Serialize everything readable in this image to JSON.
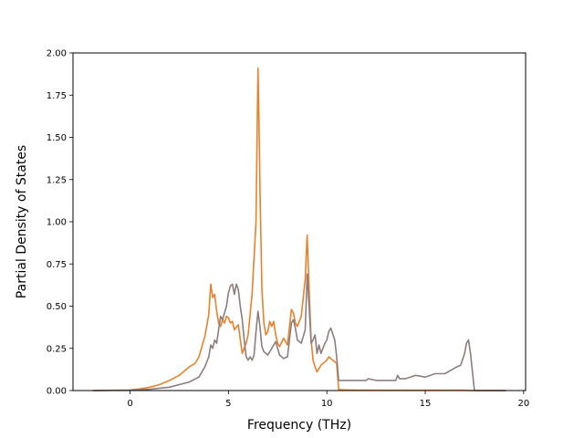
{
  "chart_data": {
    "type": "line",
    "title": "",
    "xlabel": "Frequency (THz)",
    "ylabel": "Partial Density of States",
    "xlim": [
      -2.9,
      20.1
    ],
    "ylim": [
      0.0,
      2.0
    ],
    "xticks": [
      0,
      5,
      10,
      15,
      20
    ],
    "xtick_labels": [
      "0",
      "5",
      "10",
      "15",
      "20"
    ],
    "yticks": [
      0.0,
      0.25,
      0.5,
      0.75,
      1.0,
      1.25,
      1.5,
      1.75,
      2.0
    ],
    "ytick_labels": [
      "0.00",
      "0.25",
      "0.50",
      "0.75",
      "1.00",
      "1.25",
      "1.50",
      "1.75",
      "2.00"
    ],
    "grid": false,
    "legend": "none",
    "series": [
      {
        "color": "#e8812b",
        "x": [
          -1.9,
          0.0,
          0.5,
          1.0,
          1.5,
          2.0,
          2.5,
          3.0,
          3.3,
          3.5,
          3.8,
          4.0,
          4.1,
          4.2,
          4.3,
          4.4,
          4.5,
          4.6,
          4.7,
          4.8,
          4.9,
          5.0,
          5.1,
          5.2,
          5.3,
          5.5,
          5.7,
          5.9,
          6.0,
          6.2,
          6.4,
          6.5,
          6.55,
          6.6,
          6.7,
          6.8,
          6.9,
          7.0,
          7.1,
          7.2,
          7.3,
          7.4,
          7.5,
          7.6,
          7.8,
          8.0,
          8.2,
          8.3,
          8.4,
          8.5,
          8.7,
          8.9,
          9.0,
          9.1,
          9.2,
          9.3,
          9.4,
          9.5,
          9.7,
          9.9,
          10.0,
          10.1,
          10.3,
          10.5,
          10.6,
          11.0,
          12.0,
          13.0,
          14.0,
          15.0,
          16.0,
          17.0,
          17.3,
          19.1
        ],
        "y": [
          0.0,
          0.003,
          0.01,
          0.02,
          0.035,
          0.06,
          0.09,
          0.14,
          0.16,
          0.2,
          0.32,
          0.45,
          0.63,
          0.55,
          0.57,
          0.47,
          0.4,
          0.38,
          0.42,
          0.4,
          0.44,
          0.43,
          0.4,
          0.41,
          0.36,
          0.39,
          0.22,
          0.28,
          0.33,
          0.57,
          1.0,
          1.91,
          1.6,
          1.2,
          0.6,
          0.4,
          0.33,
          0.35,
          0.41,
          0.38,
          0.41,
          0.33,
          0.28,
          0.26,
          0.31,
          0.27,
          0.48,
          0.46,
          0.4,
          0.38,
          0.44,
          0.66,
          0.92,
          0.6,
          0.3,
          0.18,
          0.14,
          0.11,
          0.15,
          0.17,
          0.18,
          0.2,
          0.18,
          0.16,
          0.005,
          0.003,
          0.002,
          0.002,
          0.002,
          0.002,
          0.002,
          0.002,
          0.0,
          0.0
        ]
      },
      {
        "color": "#8c7e7e",
        "x": [
          -1.9,
          0.0,
          1.0,
          2.0,
          3.0,
          3.5,
          3.8,
          4.0,
          4.1,
          4.2,
          4.3,
          4.4,
          4.5,
          4.6,
          4.7,
          4.8,
          4.9,
          5.0,
          5.1,
          5.2,
          5.3,
          5.4,
          5.5,
          5.6,
          5.7,
          5.8,
          5.9,
          6.0,
          6.1,
          6.2,
          6.3,
          6.4,
          6.5,
          6.6,
          6.7,
          6.8,
          7.0,
          7.2,
          7.4,
          7.6,
          7.8,
          8.0,
          8.1,
          8.2,
          8.3,
          8.4,
          8.5,
          8.7,
          8.9,
          9.0,
          9.1,
          9.2,
          9.3,
          9.4,
          9.5,
          9.6,
          9.7,
          9.8,
          9.9,
          10.0,
          10.1,
          10.2,
          10.4,
          10.5,
          10.6,
          11.0,
          11.5,
          12.0,
          12.1,
          12.5,
          13.0,
          13.5,
          13.6,
          13.7,
          14.0,
          14.5,
          15.0,
          15.5,
          16.0,
          16.3,
          16.6,
          16.8,
          17.0,
          17.1,
          17.2,
          17.3,
          17.5,
          19.1
        ],
        "y": [
          0.0,
          0.002,
          0.008,
          0.02,
          0.05,
          0.08,
          0.14,
          0.2,
          0.27,
          0.25,
          0.3,
          0.28,
          0.36,
          0.44,
          0.42,
          0.46,
          0.5,
          0.58,
          0.62,
          0.63,
          0.57,
          0.63,
          0.6,
          0.5,
          0.42,
          0.3,
          0.2,
          0.18,
          0.2,
          0.18,
          0.21,
          0.35,
          0.47,
          0.38,
          0.26,
          0.23,
          0.21,
          0.25,
          0.29,
          0.21,
          0.19,
          0.2,
          0.3,
          0.4,
          0.42,
          0.37,
          0.3,
          0.28,
          0.36,
          0.69,
          0.5,
          0.28,
          0.3,
          0.33,
          0.22,
          0.27,
          0.22,
          0.25,
          0.28,
          0.3,
          0.35,
          0.37,
          0.3,
          0.2,
          0.06,
          0.06,
          0.06,
          0.06,
          0.07,
          0.06,
          0.06,
          0.06,
          0.09,
          0.07,
          0.07,
          0.09,
          0.08,
          0.1,
          0.1,
          0.12,
          0.14,
          0.15,
          0.22,
          0.28,
          0.3,
          0.22,
          0.0,
          0.0
        ]
      }
    ]
  }
}
